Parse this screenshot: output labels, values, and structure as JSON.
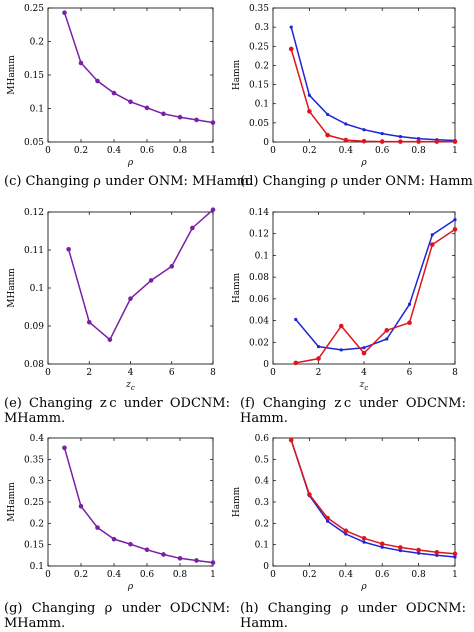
{
  "colors": {
    "blue": "#1f24d6",
    "red": "#e0141c",
    "purple": "#7a1fa8",
    "axis": "#000000"
  },
  "captions": {
    "c": "(c) Changing ρ under ONM: MHamm.",
    "d": "(d) Changing ρ under ONM: Hamm.",
    "e": "(e) Changing z c under ODCNM: MHamm.",
    "f": "(f) Changing z c under ODCNM: Hamm.",
    "g": "(g) Changing ρ under ODCNM: MHamm.",
    "h": "(h) Changing ρ under ODCNM: Hamm."
  },
  "chart_data": [
    {
      "id": "c",
      "type": "line",
      "xlabel": "ρ",
      "ylabel": "MHamm",
      "xlim": [
        0,
        1
      ],
      "ylim": [
        0.05,
        0.25
      ],
      "xticks": [
        "0",
        "0.2",
        "0.4",
        "0.6",
        "0.8",
        "1"
      ],
      "xtick_values": [
        0,
        0.2,
        0.4,
        0.6,
        0.8,
        1
      ],
      "yticks": [
        "0.05",
        "0.1",
        "0.15",
        "0.2",
        "0.25"
      ],
      "ytick_values": [
        0.05,
        0.1,
        0.15,
        0.2,
        0.25
      ],
      "x": [
        0.1,
        0.2,
        0.3,
        0.4,
        0.5,
        0.6,
        0.7,
        0.8,
        0.9,
        1.0
      ],
      "series": [
        {
          "color": "#7a1fa8",
          "values": [
            0.243,
            0.168,
            0.141,
            0.123,
            0.11,
            0.101,
            0.092,
            0.087,
            0.083,
            0.079
          ]
        }
      ]
    },
    {
      "id": "d",
      "type": "line",
      "xlabel": "ρ",
      "ylabel": "Hamm",
      "xlim": [
        0,
        1
      ],
      "ylim": [
        0,
        0.35
      ],
      "xticks": [
        "0",
        "0.2",
        "0.4",
        "0.6",
        "0.8",
        "1"
      ],
      "xtick_values": [
        0,
        0.2,
        0.4,
        0.6,
        0.8,
        1
      ],
      "yticks": [
        "0",
        "0.05",
        "0.1",
        "0.15",
        "0.2",
        "0.25",
        "0.3",
        "0.35"
      ],
      "ytick_values": [
        0,
        0.05,
        0.1,
        0.15,
        0.2,
        0.25,
        0.3,
        0.35
      ],
      "x": [
        0.1,
        0.2,
        0.3,
        0.4,
        0.5,
        0.6,
        0.7,
        0.8,
        0.9,
        1.0
      ],
      "series": [
        {
          "color": "#1f24d6",
          "values": [
            0.3,
            0.122,
            0.072,
            0.047,
            0.032,
            0.022,
            0.014,
            0.009,
            0.006,
            0.004
          ]
        },
        {
          "color": "#e0141c",
          "values": [
            0.243,
            0.08,
            0.018,
            0.005,
            0.002,
            0.001,
            0.001,
            0.001,
            0.001,
            0.001
          ]
        }
      ]
    },
    {
      "id": "e",
      "type": "line",
      "xlabel": "z",
      "xlabel_sub": "c",
      "ylabel": "MHamm",
      "xlim": [
        0,
        8
      ],
      "ylim": [
        0.08,
        0.12
      ],
      "xticks": [
        "0",
        "2",
        "4",
        "6",
        "8"
      ],
      "xtick_values": [
        0,
        2,
        4,
        6,
        8
      ],
      "yticks": [
        "0.08",
        "0.09",
        "0.1",
        "0.11",
        "0.12"
      ],
      "ytick_values": [
        0.08,
        0.09,
        0.1,
        0.11,
        0.12
      ],
      "x": [
        1,
        2,
        3,
        4,
        5,
        6,
        7,
        8
      ],
      "series": [
        {
          "color": "#7a1fa8",
          "values": [
            0.1102,
            0.091,
            0.0864,
            0.0972,
            0.102,
            0.1057,
            0.1158,
            0.1206
          ]
        }
      ]
    },
    {
      "id": "f",
      "type": "line",
      "xlabel": "z",
      "xlabel_sub": "c",
      "ylabel": "Hamm",
      "xlim": [
        0,
        8
      ],
      "ylim": [
        0,
        0.14
      ],
      "xticks": [
        "0",
        "2",
        "4",
        "6",
        "8"
      ],
      "xtick_values": [
        0,
        2,
        4,
        6,
        8
      ],
      "yticks": [
        "0",
        "0.02",
        "0.04",
        "0.06",
        "0.08",
        "0.1",
        "0.12",
        "0.14"
      ],
      "ytick_values": [
        0,
        0.02,
        0.04,
        0.06,
        0.08,
        0.1,
        0.12,
        0.14
      ],
      "x": [
        1,
        2,
        3,
        4,
        5,
        6,
        7,
        8
      ],
      "series": [
        {
          "color": "#1f24d6",
          "values": [
            0.041,
            0.016,
            0.013,
            0.015,
            0.023,
            0.055,
            0.119,
            0.133
          ]
        },
        {
          "color": "#e0141c",
          "values": [
            0.001,
            0.005,
            0.035,
            0.01,
            0.031,
            0.038,
            0.11,
            0.124
          ]
        }
      ]
    },
    {
      "id": "g",
      "type": "line",
      "xlabel": "ρ",
      "ylabel": "MHamm",
      "xlim": [
        0,
        1
      ],
      "ylim": [
        0.1,
        0.4
      ],
      "xticks": [
        "0",
        "0.2",
        "0.4",
        "0.6",
        "0.8",
        "1"
      ],
      "xtick_values": [
        0,
        0.2,
        0.4,
        0.6,
        0.8,
        1
      ],
      "yticks": [
        "0.1",
        "0.15",
        "0.2",
        "0.25",
        "0.3",
        "0.35",
        "0.4"
      ],
      "ytick_values": [
        0.1,
        0.15,
        0.2,
        0.25,
        0.3,
        0.35,
        0.4
      ],
      "x": [
        0.1,
        0.2,
        0.3,
        0.4,
        0.5,
        0.6,
        0.7,
        0.8,
        0.9,
        1.0
      ],
      "series": [
        {
          "color": "#7a1fa8",
          "values": [
            0.377,
            0.24,
            0.19,
            0.163,
            0.151,
            0.138,
            0.127,
            0.118,
            0.113,
            0.108
          ]
        }
      ]
    },
    {
      "id": "h",
      "type": "line",
      "xlabel": "ρ",
      "ylabel": "Hamm",
      "xlim": [
        0,
        1
      ],
      "ylim": [
        0,
        0.6
      ],
      "xticks": [
        "0",
        "0.2",
        "0.4",
        "0.6",
        "0.8",
        "1"
      ],
      "xtick_values": [
        0,
        0.2,
        0.4,
        0.6,
        0.8,
        1
      ],
      "yticks": [
        "0",
        "0.1",
        "0.2",
        "0.3",
        "0.4",
        "0.5",
        "0.6"
      ],
      "ytick_values": [
        0,
        0.1,
        0.2,
        0.3,
        0.4,
        0.5,
        0.6
      ],
      "x": [
        0.1,
        0.2,
        0.3,
        0.4,
        0.5,
        0.6,
        0.7,
        0.8,
        0.9,
        1.0
      ],
      "series": [
        {
          "color": "#1f24d6",
          "values": [
            0.59,
            0.33,
            0.21,
            0.15,
            0.112,
            0.088,
            0.072,
            0.06,
            0.05,
            0.042
          ]
        },
        {
          "color": "#e0141c",
          "values": [
            0.59,
            0.335,
            0.225,
            0.165,
            0.13,
            0.104,
            0.087,
            0.075,
            0.064,
            0.057
          ]
        }
      ]
    }
  ]
}
